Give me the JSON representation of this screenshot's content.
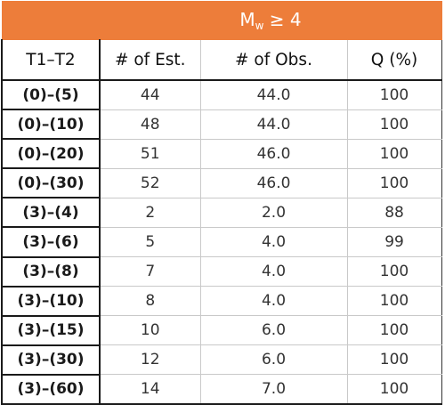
{
  "table": {
    "group_header": {
      "prefix": "M",
      "subscript": "w",
      "suffix": " ≥ 4"
    },
    "columns": [
      "T1–T2",
      "# of Est.",
      "# of Obs.",
      "Q (%)"
    ],
    "rows": [
      [
        "(0)–(5)",
        "44",
        "44.0",
        "100"
      ],
      [
        "(0)–(10)",
        "48",
        "44.0",
        "100"
      ],
      [
        "(0)–(20)",
        "51",
        "46.0",
        "100"
      ],
      [
        "(0)–(30)",
        "52",
        "46.0",
        "100"
      ],
      [
        "(3)–(4)",
        "2",
        "2.0",
        "88"
      ],
      [
        "(3)–(6)",
        "5",
        "4.0",
        "99"
      ],
      [
        "(3)–(8)",
        "7",
        "4.0",
        "100"
      ],
      [
        "(3)–(10)",
        "8",
        "4.0",
        "100"
      ],
      [
        "(3)–(15)",
        "10",
        "6.0",
        "100"
      ],
      [
        "(3)–(30)",
        "12",
        "6.0",
        "100"
      ],
      [
        "(3)–(60)",
        "14",
        "7.0",
        "100"
      ]
    ]
  },
  "colors": {
    "header_band": "#ed7d3a",
    "header_text": "#ffffff",
    "grid_line": "#c9c9c9",
    "strong_border": "#1a1a1a"
  }
}
